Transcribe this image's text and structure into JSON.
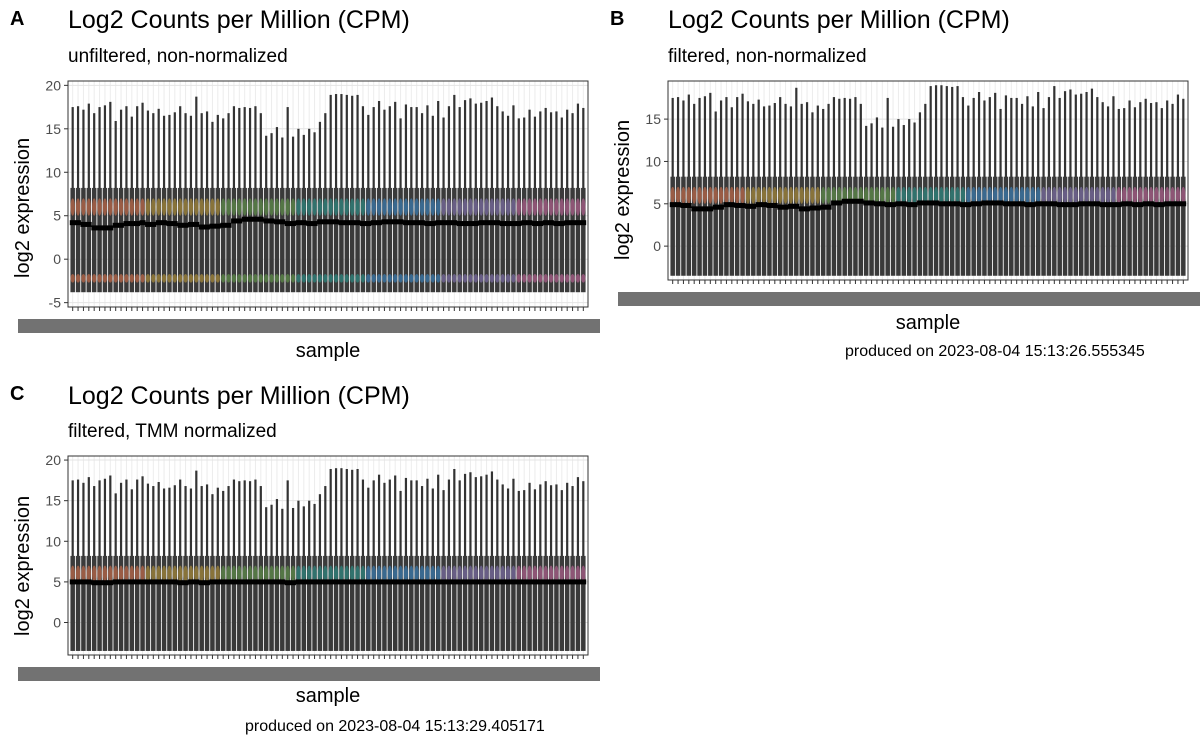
{
  "panels": [
    {
      "tag": "A",
      "title": "Log2 Counts per Million (CPM)",
      "subtitle": "unfiltered, non-normalized",
      "xlabel": "sample",
      "ylabel": "log2 expression",
      "footer": ""
    },
    {
      "tag": "B",
      "title": "Log2 Counts per Million (CPM)",
      "subtitle": "filtered, non-normalized",
      "xlabel": "sample",
      "ylabel": "log2 expression",
      "footer": "produced on 2023-08-04 15:13:26.555345"
    },
    {
      "tag": "C",
      "title": "Log2 Counts per Million (CPM)",
      "subtitle": "filtered, TMM normalized",
      "xlabel": "sample",
      "ylabel": "log2 expression",
      "footer": "produced on 2023-08-04 15:13:29.405171"
    }
  ],
  "chart_data": [
    {
      "type": "violin",
      "title": "Log2 Counts per Million (CPM)",
      "subtitle": "unfiltered, non-normalized",
      "xlabel": "sample",
      "ylabel": "log2 expression",
      "n_samples": 96,
      "ylim": [
        -5.5,
        20.5
      ],
      "yticks": [
        -5,
        0,
        5,
        10,
        15,
        20
      ],
      "grid": true,
      "legend": "none",
      "palette": [
        "#e8794f",
        "#c9a23a",
        "#6aa84f",
        "#2aa198",
        "#3b8fd6",
        "#8e7cc3",
        "#d16ba5"
      ],
      "max_profile": [
        17.5,
        17.6,
        17.2,
        17.9,
        16.8,
        17.5,
        17.7,
        18.1,
        15.9,
        17.2,
        17.6,
        16.4,
        17.6,
        18.0,
        17.1,
        16.8,
        17.3,
        16.5,
        16.6,
        16.9,
        17.6,
        16.8,
        16.5,
        18.7,
        16.8,
        17.0,
        15.8,
        16.6,
        16.2,
        16.8,
        17.6,
        17.4,
        17.5,
        17.4,
        17.6,
        16.8,
        14.2,
        14.5,
        15.2,
        14.0,
        17.5,
        14.1,
        15.0,
        14.3,
        15.0,
        14.6,
        15.8,
        16.8,
        18.9,
        19.0,
        19.0,
        18.9,
        18.8,
        18.9,
        17.6,
        16.6,
        17.5,
        18.2,
        17.2,
        17.6,
        18.1,
        16.2,
        17.8,
        17.5,
        17.5,
        16.8,
        17.7,
        16.5,
        18.2,
        16.3,
        17.6,
        18.9,
        17.5,
        18.3,
        18.5,
        17.9,
        18.0,
        18.2,
        18.6,
        17.6,
        17.0,
        16.5,
        17.7,
        16.2,
        16.3,
        17.2,
        16.4,
        17.0,
        17.4,
        16.9,
        17.0,
        16.3,
        17.2,
        16.8,
        17.9,
        17.4
      ],
      "upper_violin_center": 6.0,
      "lower_violin_center": -2.2,
      "min_value": -3.8,
      "median_profile": [
        4.2,
        4.2,
        4.0,
        4.0,
        3.6,
        3.6,
        3.6,
        3.6,
        3.9,
        3.9,
        4.1,
        4.1,
        4.1,
        4.2,
        4.0,
        4.0,
        4.2,
        4.2,
        4.1,
        4.1,
        3.9,
        3.9,
        4.0,
        4.0,
        3.7,
        3.7,
        3.8,
        3.8,
        3.9,
        3.9,
        4.4,
        4.4,
        4.6,
        4.6,
        4.6,
        4.6,
        4.4,
        4.4,
        4.3,
        4.3,
        4.1,
        4.1,
        4.2,
        4.2,
        4.1,
        4.1,
        4.3,
        4.3,
        4.3,
        4.3,
        4.2,
        4.2,
        4.2,
        4.2,
        4.1,
        4.1,
        4.2,
        4.2,
        4.3,
        4.3,
        4.3,
        4.3,
        4.2,
        4.2,
        4.2,
        4.2,
        4.1,
        4.1,
        4.2,
        4.2,
        4.2,
        4.2,
        4.1,
        4.1,
        4.1,
        4.1,
        4.2,
        4.2,
        4.2,
        4.2,
        4.1,
        4.1,
        4.1,
        4.1,
        4.2,
        4.2,
        4.1,
        4.1,
        4.2,
        4.2,
        4.1,
        4.1,
        4.2,
        4.2,
        4.2,
        4.2
      ]
    },
    {
      "type": "violin",
      "title": "Log2 Counts per Million (CPM)",
      "subtitle": "filtered, non-normalized",
      "xlabel": "sample",
      "ylabel": "log2 expression",
      "n_samples": 96,
      "ylim": [
        -4.0,
        19.5
      ],
      "yticks": [
        0,
        5,
        10,
        15
      ],
      "grid": true,
      "legend": "none",
      "palette": [
        "#e8794f",
        "#c9a23a",
        "#6aa84f",
        "#2aa198",
        "#3b8fd6",
        "#8e7cc3",
        "#d16ba5"
      ],
      "max_profile": [
        17.5,
        17.6,
        17.2,
        17.9,
        16.8,
        17.5,
        17.7,
        18.1,
        15.9,
        17.2,
        17.6,
        16.4,
        17.6,
        18.0,
        17.1,
        16.8,
        17.3,
        16.5,
        16.6,
        16.9,
        17.6,
        16.8,
        16.5,
        18.7,
        16.8,
        17.0,
        15.8,
        16.6,
        16.2,
        16.8,
        17.6,
        17.4,
        17.5,
        17.4,
        17.6,
        16.8,
        14.2,
        14.5,
        15.2,
        14.0,
        17.5,
        14.1,
        15.0,
        14.3,
        15.0,
        14.6,
        15.8,
        16.8,
        18.9,
        19.0,
        19.0,
        18.9,
        18.8,
        18.9,
        17.6,
        16.6,
        17.5,
        18.2,
        17.2,
        17.6,
        18.1,
        16.2,
        17.8,
        17.5,
        17.5,
        16.8,
        17.7,
        16.5,
        18.2,
        16.3,
        17.6,
        18.9,
        17.5,
        18.3,
        18.5,
        17.9,
        18.0,
        18.2,
        18.6,
        17.6,
        17.0,
        16.5,
        17.7,
        16.2,
        16.3,
        17.2,
        16.4,
        17.0,
        17.4,
        16.9,
        17.0,
        16.3,
        17.2,
        16.8,
        17.9,
        17.4
      ],
      "upper_violin_center": 6.0,
      "min_value": -3.5,
      "median_profile": [
        4.9,
        4.9,
        4.8,
        4.8,
        4.4,
        4.4,
        4.4,
        4.4,
        4.6,
        4.6,
        4.9,
        4.9,
        4.8,
        4.8,
        4.7,
        4.7,
        4.9,
        4.9,
        4.8,
        4.8,
        4.6,
        4.6,
        4.7,
        4.7,
        4.4,
        4.4,
        4.5,
        4.5,
        4.6,
        4.6,
        5.1,
        5.1,
        5.3,
        5.3,
        5.3,
        5.3,
        5.1,
        5.1,
        5.0,
        5.0,
        4.9,
        4.9,
        5.0,
        5.0,
        4.9,
        4.9,
        5.1,
        5.1,
        5.1,
        5.1,
        5.0,
        5.0,
        5.0,
        5.0,
        4.9,
        4.9,
        5.0,
        5.0,
        5.1,
        5.1,
        5.1,
        5.1,
        5.0,
        5.0,
        5.0,
        5.0,
        4.9,
        4.9,
        5.0,
        5.0,
        5.0,
        5.0,
        4.9,
        4.9,
        4.9,
        4.9,
        5.0,
        5.0,
        5.0,
        5.0,
        4.9,
        4.9,
        4.9,
        4.9,
        5.0,
        5.0,
        4.9,
        4.9,
        5.0,
        5.0,
        4.9,
        4.9,
        5.0,
        5.0,
        5.0,
        5.0
      ]
    },
    {
      "type": "violin",
      "title": "Log2 Counts per Million (CPM)",
      "subtitle": "filtered, TMM normalized",
      "xlabel": "sample",
      "ylabel": "log2 expression",
      "n_samples": 96,
      "ylim": [
        -4.0,
        20.5
      ],
      "yticks": [
        0,
        5,
        10,
        15,
        20
      ],
      "grid": true,
      "legend": "none",
      "palette": [
        "#e8794f",
        "#c9a23a",
        "#6aa84f",
        "#2aa198",
        "#3b8fd6",
        "#8e7cc3",
        "#d16ba5"
      ],
      "max_profile": [
        17.5,
        17.6,
        17.2,
        17.9,
        16.8,
        17.5,
        17.7,
        18.1,
        15.9,
        17.2,
        17.6,
        16.4,
        17.6,
        18.0,
        17.1,
        16.8,
        17.3,
        16.5,
        16.6,
        16.9,
        17.6,
        16.8,
        16.5,
        18.7,
        16.8,
        17.0,
        15.8,
        16.6,
        16.2,
        16.8,
        17.6,
        17.4,
        17.5,
        17.4,
        17.6,
        16.8,
        14.2,
        14.5,
        15.2,
        14.0,
        17.5,
        14.1,
        15.0,
        14.3,
        15.0,
        14.6,
        15.8,
        16.8,
        18.9,
        19.0,
        19.0,
        18.9,
        18.8,
        18.9,
        17.6,
        16.6,
        17.5,
        18.2,
        17.2,
        17.6,
        18.1,
        16.2,
        17.8,
        17.5,
        17.5,
        16.8,
        17.7,
        16.5,
        18.2,
        16.3,
        17.6,
        18.9,
        17.5,
        18.3,
        18.5,
        17.9,
        18.0,
        18.2,
        18.6,
        17.6,
        17.0,
        16.5,
        17.7,
        16.2,
        16.3,
        17.2,
        16.4,
        17.0,
        17.4,
        16.9,
        17.0,
        16.3,
        17.2,
        16.8,
        17.9,
        17.4
      ],
      "upper_violin_center": 6.0,
      "min_value": -3.5,
      "median_profile": [
        5.0,
        5.0,
        5.0,
        5.0,
        4.9,
        4.9,
        4.9,
        4.9,
        5.0,
        5.0,
        5.0,
        5.0,
        5.0,
        5.0,
        5.0,
        5.0,
        5.0,
        5.0,
        5.0,
        5.0,
        4.9,
        4.9,
        5.0,
        5.0,
        4.9,
        4.9,
        5.0,
        5.0,
        5.0,
        5.0,
        5.0,
        5.0,
        5.0,
        5.0,
        5.0,
        5.0,
        5.0,
        5.0,
        5.0,
        5.0,
        4.9,
        4.9,
        5.0,
        5.0,
        5.0,
        5.0,
        5.0,
        5.0,
        5.0,
        5.0,
        5.0,
        5.0,
        5.0,
        5.0,
        5.0,
        5.0,
        5.0,
        5.0,
        5.0,
        5.0,
        5.0,
        5.0,
        5.0,
        5.0,
        5.0,
        5.0,
        5.0,
        5.0,
        5.0,
        5.0,
        5.0,
        5.0,
        5.0,
        5.0,
        5.0,
        5.0,
        5.0,
        5.0,
        5.0,
        5.0,
        5.0,
        5.0,
        5.0,
        5.0,
        5.0,
        5.0,
        5.0,
        5.0,
        5.0,
        5.0,
        5.0,
        5.0,
        5.0,
        5.0,
        5.0,
        5.0
      ]
    }
  ]
}
